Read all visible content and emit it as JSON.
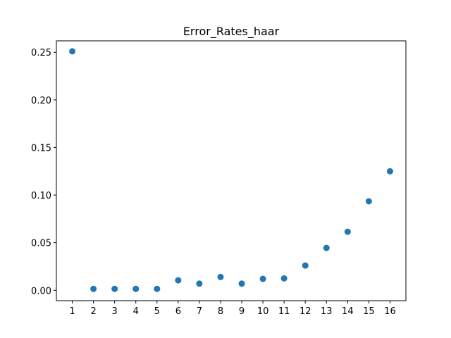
{
  "chart_data": {
    "type": "scatter",
    "title": "Error_Rates_haar",
    "xlabel": "",
    "ylabel": "",
    "x": [
      1,
      2,
      3,
      4,
      5,
      6,
      7,
      8,
      9,
      10,
      11,
      12,
      13,
      14,
      15,
      16
    ],
    "series": [
      {
        "values": [
          0.251,
          0.0015,
          0.0015,
          0.0015,
          0.0015,
          0.0105,
          0.007,
          0.014,
          0.007,
          0.012,
          0.0125,
          0.026,
          0.0445,
          0.0615,
          0.0935,
          0.125
        ],
        "color": "#1f77b4"
      }
    ],
    "xticks": [
      "1",
      "2",
      "3",
      "4",
      "5",
      "6",
      "7",
      "8",
      "9",
      "10",
      "11",
      "12",
      "13",
      "14",
      "15",
      "16"
    ],
    "yticks": [
      "0.00",
      "0.05",
      "0.10",
      "0.15",
      "0.20",
      "0.25"
    ],
    "xlim": [
      0.25,
      16.75
    ],
    "ylim": [
      -0.0109,
      0.262
    ],
    "grid": false,
    "legend": "none"
  }
}
